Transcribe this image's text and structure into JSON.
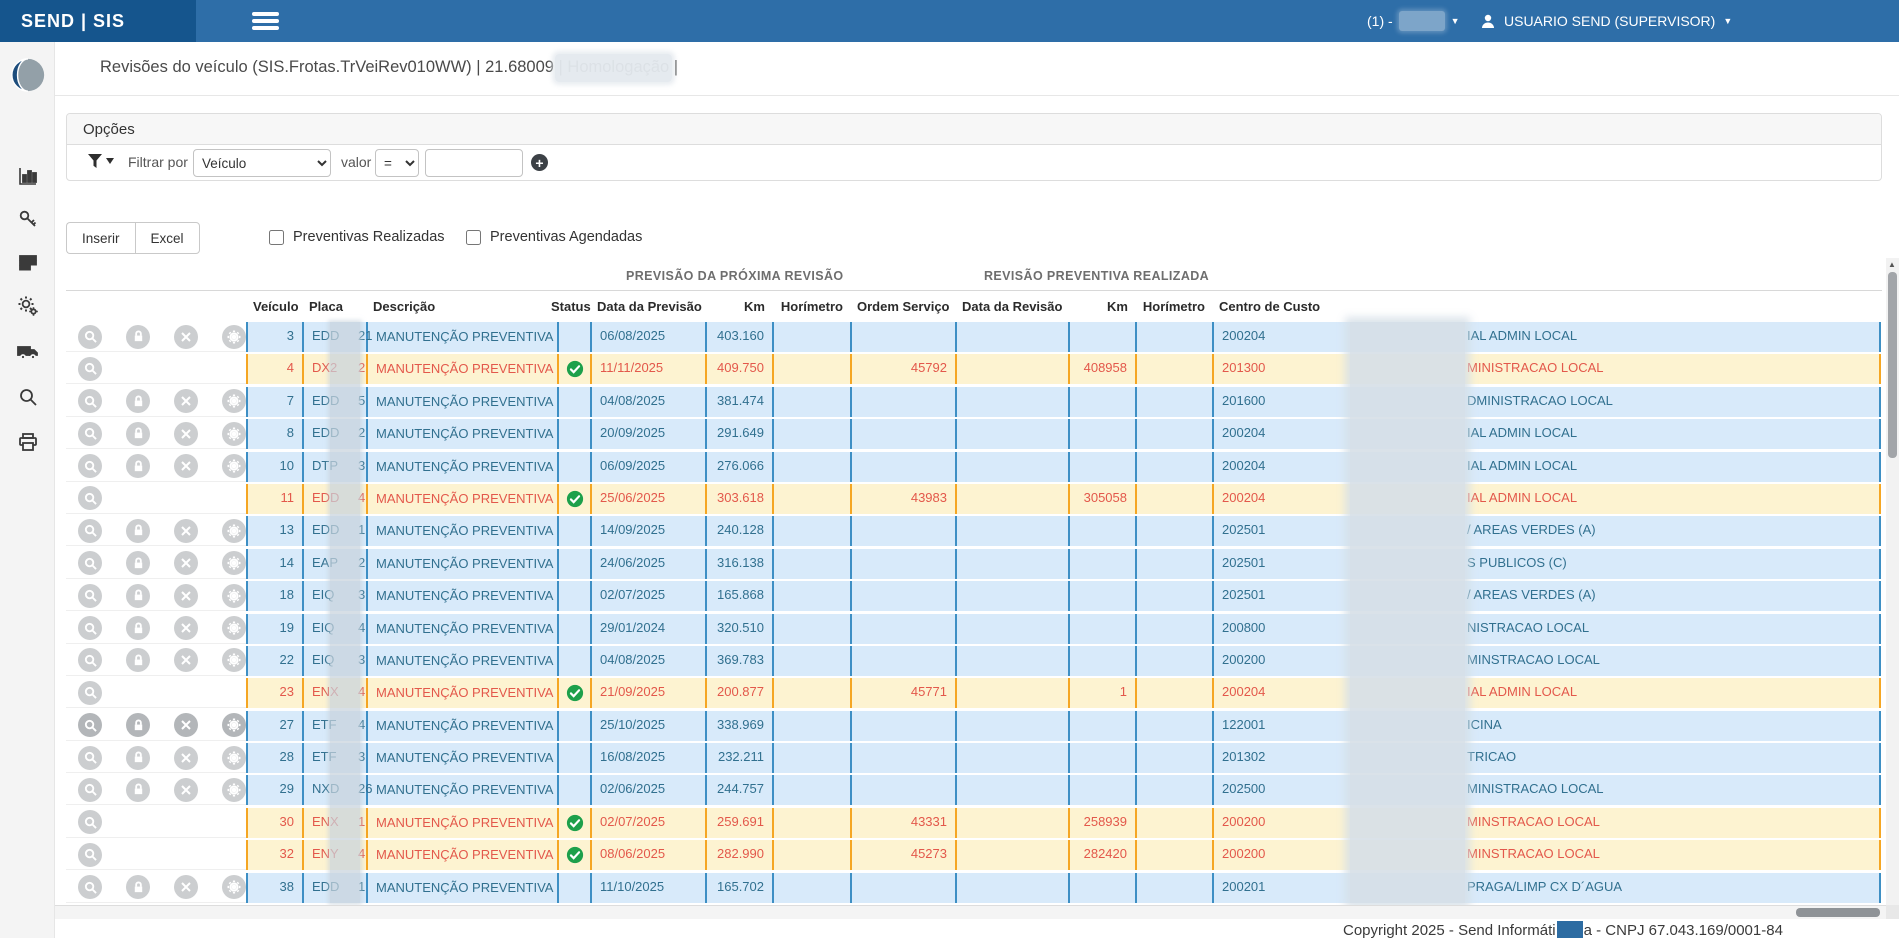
{
  "header": {
    "brand": "SEND | SIS",
    "environment_prefix": "(1) -",
    "user_name": "USUARIO SEND (SUPERVISOR)"
  },
  "page": {
    "title": "Revisões do veículo (SIS.Frotas.TrVeiRev010WW) | 21.68009 | Homologação |"
  },
  "options": {
    "title": "Opções",
    "filter_by_label": "Filtrar por",
    "filter_field": "Veículo",
    "value_label": "valor",
    "operator": "=",
    "value": ""
  },
  "toolbar": {
    "insert_label": "Inserir",
    "excel_label": "Excel",
    "checkbox_realizadas": "Preventivas Realizadas",
    "checkbox_agendadas": "Preventivas Agendadas"
  },
  "table": {
    "group_headers": {
      "forecast": "PREVISÃO DA PRÓXIMA REVISÃO",
      "performed": "REVISÃO PREVENTIVA REALIZADA"
    },
    "columns": {
      "vehicle": "Veículo",
      "plate": "Placa",
      "description": "Descrição",
      "status": "Status",
      "forecast_date": "Data da Previsão",
      "km": "Km",
      "horimeter": "Horímetro",
      "service_order": "Ordem Serviço",
      "revision_date": "Data da Revisão",
      "km2": "Km",
      "horimeter2": "Horímetro",
      "cost_center": "Centro de Custo"
    },
    "rows": [
      {
        "vehicle": 3,
        "plate_prefix": "EDD",
        "plate_suffix": "21",
        "description": "MANUTENÇÃO PREVENTIVA",
        "has_comment": false,
        "status_ok": false,
        "forecast_date": "06/08/2025",
        "forecast_km": "403.160",
        "horimeter": "",
        "service_order": "",
        "revision_date": "",
        "revision_km": "",
        "revision_horimeter": "",
        "cc_code": "200204",
        "cc_tail": "IAL ADMIN LOCAL",
        "highlighted": false,
        "actions": "all"
      },
      {
        "vehicle": 4,
        "plate_prefix": "DX2",
        "plate_suffix": "2",
        "description": "MANUTENÇÃO PREVENTIVA",
        "has_comment": false,
        "status_ok": true,
        "forecast_date": "11/11/2025",
        "forecast_km": "409.750",
        "horimeter": "",
        "service_order": "45792",
        "revision_date": "",
        "revision_km": "408958",
        "revision_horimeter": "",
        "cc_code": "201300",
        "cc_tail": "MINISTRACAO LOCAL",
        "highlighted": true,
        "actions": "search"
      },
      {
        "vehicle": 7,
        "plate_prefix": "EDD",
        "plate_suffix": "5",
        "description": "MANUTENÇÃO PREVENTIVA",
        "has_comment": false,
        "status_ok": false,
        "forecast_date": "04/08/2025",
        "forecast_km": "381.474",
        "horimeter": "",
        "service_order": "",
        "revision_date": "",
        "revision_km": "",
        "revision_horimeter": "",
        "cc_code": "201600",
        "cc_tail": "DMINISTRACAO LOCAL",
        "highlighted": false,
        "actions": "all"
      },
      {
        "vehicle": 8,
        "plate_prefix": "EDD",
        "plate_suffix": "2",
        "description": "MANUTENÇÃO PREVENTIVA",
        "has_comment": false,
        "status_ok": false,
        "forecast_date": "20/09/2025",
        "forecast_km": "291.649",
        "horimeter": "",
        "service_order": "",
        "revision_date": "",
        "revision_km": "",
        "revision_horimeter": "",
        "cc_code": "200204",
        "cc_tail": "IAL ADMIN LOCAL",
        "highlighted": false,
        "actions": "all"
      },
      {
        "vehicle": 10,
        "plate_prefix": "DTP",
        "plate_suffix": "3",
        "description": "MANUTENÇÃO PREVENTIVA",
        "has_comment": false,
        "status_ok": false,
        "forecast_date": "06/09/2025",
        "forecast_km": "276.066",
        "horimeter": "",
        "service_order": "",
        "revision_date": "",
        "revision_km": "",
        "revision_horimeter": "",
        "cc_code": "200204",
        "cc_tail": "IAL ADMIN LOCAL",
        "highlighted": false,
        "actions": "all"
      },
      {
        "vehicle": 11,
        "plate_prefix": "EDD",
        "plate_suffix": "4",
        "description": "MANUTENÇÃO PREVENTIVA",
        "has_comment": true,
        "status_ok": true,
        "forecast_date": "25/06/2025",
        "forecast_km": "303.618",
        "horimeter": "",
        "service_order": "43983",
        "revision_date": "",
        "revision_km": "305058",
        "revision_horimeter": "",
        "cc_code": "200204",
        "cc_tail": "IAL ADMIN LOCAL",
        "highlighted": true,
        "actions": "search"
      },
      {
        "vehicle": 13,
        "plate_prefix": "EDD",
        "plate_suffix": "1",
        "description": "MANUTENÇÃO PREVENTIVA",
        "has_comment": false,
        "status_ok": false,
        "forecast_date": "14/09/2025",
        "forecast_km": "240.128",
        "horimeter": "",
        "service_order": "",
        "revision_date": "",
        "revision_km": "",
        "revision_horimeter": "",
        "cc_code": "202501",
        "cc_tail": "/ AREAS VERDES (A)",
        "highlighted": false,
        "actions": "all"
      },
      {
        "vehicle": 14,
        "plate_prefix": "EAP",
        "plate_suffix": "2",
        "description": "MANUTENÇÃO PREVENTIVA",
        "has_comment": false,
        "status_ok": false,
        "forecast_date": "24/06/2025",
        "forecast_km": "316.138",
        "horimeter": "",
        "service_order": "",
        "revision_date": "",
        "revision_km": "",
        "revision_horimeter": "",
        "cc_code": "202501",
        "cc_tail": "S PUBLICOS (C)",
        "highlighted": false,
        "actions": "all"
      },
      {
        "vehicle": 18,
        "plate_prefix": "EIQ",
        "plate_suffix": "3",
        "description": "MANUTENÇÃO PREVENTIVA",
        "has_comment": false,
        "status_ok": false,
        "forecast_date": "02/07/2025",
        "forecast_km": "165.868",
        "horimeter": "",
        "service_order": "",
        "revision_date": "",
        "revision_km": "",
        "revision_horimeter": "",
        "cc_code": "202501",
        "cc_tail": "/ AREAS VERDES (A)",
        "highlighted": false,
        "actions": "all"
      },
      {
        "vehicle": 19,
        "plate_prefix": "EIQ",
        "plate_suffix": "4",
        "description": "MANUTENÇÃO PREVENTIVA",
        "has_comment": false,
        "status_ok": false,
        "forecast_date": "29/01/2024",
        "forecast_km": "320.510",
        "horimeter": "",
        "service_order": "",
        "revision_date": "",
        "revision_km": "",
        "revision_horimeter": "",
        "cc_code": "200800",
        "cc_tail": "NISTRACAO LOCAL",
        "highlighted": false,
        "actions": "all"
      },
      {
        "vehicle": 22,
        "plate_prefix": "EIQ",
        "plate_suffix": "3",
        "description": "MANUTENÇÃO PREVENTIVA",
        "has_comment": false,
        "status_ok": false,
        "forecast_date": "04/08/2025",
        "forecast_km": "369.783",
        "horimeter": "",
        "service_order": "",
        "revision_date": "",
        "revision_km": "",
        "revision_horimeter": "",
        "cc_code": "200200",
        "cc_tail": "MINSTRACAO LOCAL",
        "highlighted": false,
        "actions": "all"
      },
      {
        "vehicle": 23,
        "plate_prefix": "ENX",
        "plate_suffix": "4",
        "description": "MANUTENÇÃO PREVENTIVA",
        "has_comment": false,
        "status_ok": true,
        "forecast_date": "21/09/2025",
        "forecast_km": "200.877",
        "horimeter": "",
        "service_order": "45771",
        "revision_date": "",
        "revision_km": "1",
        "revision_horimeter": "",
        "cc_code": "200204",
        "cc_tail": "IAL ADMIN LOCAL",
        "highlighted": true,
        "actions": "search"
      },
      {
        "vehicle": 27,
        "plate_prefix": "ETF",
        "plate_suffix": "4",
        "description": "MANUTENÇÃO PREVENTIVA",
        "has_comment": false,
        "status_ok": false,
        "forecast_date": "25/10/2025",
        "forecast_km": "338.969",
        "horimeter": "",
        "service_order": "",
        "revision_date": "",
        "revision_km": "",
        "revision_horimeter": "",
        "cc_code": "122001",
        "cc_tail": "ICINA",
        "highlighted": false,
        "actions": "all",
        "buttons_dark": true
      },
      {
        "vehicle": 28,
        "plate_prefix": "ETF",
        "plate_suffix": "3",
        "description": "MANUTENÇÃO PREVENTIVA",
        "has_comment": false,
        "status_ok": false,
        "forecast_date": "16/08/2025",
        "forecast_km": "232.211",
        "horimeter": "",
        "service_order": "",
        "revision_date": "",
        "revision_km": "",
        "revision_horimeter": "",
        "cc_code": "201302",
        "cc_tail": "TRICAO",
        "highlighted": false,
        "actions": "all"
      },
      {
        "vehicle": 29,
        "plate_prefix": "NXD",
        "plate_suffix": "26",
        "description": "MANUTENÇÃO PREVENTIVA",
        "has_comment": false,
        "status_ok": false,
        "forecast_date": "02/06/2025",
        "forecast_km": "244.757",
        "horimeter": "",
        "service_order": "",
        "revision_date": "",
        "revision_km": "",
        "revision_horimeter": "",
        "cc_code": "202500",
        "cc_tail": "MINISTRACAO LOCAL",
        "highlighted": false,
        "actions": "all"
      },
      {
        "vehicle": 30,
        "plate_prefix": "ENX",
        "plate_suffix": "1",
        "description": "MANUTENÇÃO PREVENTIVA",
        "has_comment": false,
        "status_ok": true,
        "forecast_date": "02/07/2025",
        "forecast_km": "259.691",
        "horimeter": "",
        "service_order": "43331",
        "revision_date": "",
        "revision_km": "258939",
        "revision_horimeter": "",
        "cc_code": "200200",
        "cc_tail": "MINSTRACAO LOCAL",
        "highlighted": true,
        "actions": "search"
      },
      {
        "vehicle": 32,
        "plate_prefix": "ENY",
        "plate_suffix": "4",
        "description": "MANUTENÇÃO PREVENTIVA",
        "has_comment": false,
        "status_ok": true,
        "forecast_date": "08/06/2025",
        "forecast_km": "282.990",
        "horimeter": "",
        "service_order": "45273",
        "revision_date": "",
        "revision_km": "282420",
        "revision_horimeter": "",
        "cc_code": "200200",
        "cc_tail": "MINSTRACAO LOCAL",
        "highlighted": true,
        "actions": "search"
      },
      {
        "vehicle": 38,
        "plate_prefix": "EDD",
        "plate_suffix": "1",
        "description": "MANUTENÇÃO PREVENTIVA",
        "has_comment": false,
        "status_ok": false,
        "forecast_date": "11/10/2025",
        "forecast_km": "165.702",
        "horimeter": "",
        "service_order": "",
        "revision_date": "",
        "revision_km": "",
        "revision_horimeter": "",
        "cc_code": "200201",
        "cc_tail": "PRAGA/LIMP CX D´AGUA",
        "highlighted": false,
        "actions": "all"
      }
    ]
  },
  "footer": {
    "copyright_prefix": "Copyright 2025 - Send Informáti",
    "copyright_suffix": "a - CNPJ 67.043.169/0001-84"
  },
  "colors": {
    "header_bar": "#2e6ea8",
    "header_brand": "#15558d",
    "row_blue_bg": "#d8eafa",
    "row_blue_border": "#3e8fc4",
    "row_blue_text": "#31708f",
    "row_yellow_bg": "#fdf3d1",
    "row_yellow_border": "#f5a623",
    "row_yellow_text": "#e3584b",
    "status_ok_green": "#1da04b"
  }
}
